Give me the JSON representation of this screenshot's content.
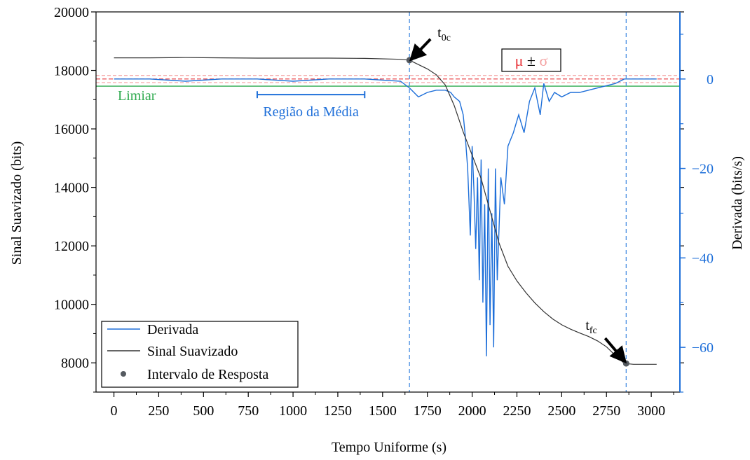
{
  "chart_data": {
    "type": "line",
    "xlabel": "Tempo Uniforme (s)",
    "ylabel": "Sinal Suavizado (bits)",
    "y2label": "Derivada (bits/s)",
    "xlim": [
      -100,
      3160
    ],
    "ylim": [
      7000,
      20000
    ],
    "y2lim": [
      -70,
      15
    ],
    "x_ticks": [
      0,
      250,
      500,
      750,
      1000,
      1250,
      1500,
      1750,
      2000,
      2250,
      2500,
      2750,
      3000
    ],
    "y_ticks": [
      8000,
      10000,
      12000,
      14000,
      16000,
      18000,
      20000
    ],
    "y2_ticks": [
      0,
      -20,
      -40,
      -60
    ],
    "x_tick_labels": [
      "0",
      "250",
      "500",
      "750",
      "1000",
      "1250",
      "1500",
      "1750",
      "2000",
      "2250",
      "2500",
      "2750",
      "3000"
    ],
    "y_tick_labels": [
      "8000",
      "10000",
      "12000",
      "14000",
      "16000",
      "18000",
      "20000"
    ],
    "y2_tick_labels": [
      "0",
      "−20",
      "−40",
      "−60"
    ],
    "grid": false,
    "legend_position": "bottom-left",
    "legend": {
      "derivada": "Derivada",
      "sinal": "Sinal Suavizado",
      "intervalo": "Intervalo de Resposta"
    },
    "colors": {
      "derivada": "#1e6fd9",
      "sinal": "#333333",
      "limiar": "#2faa4f",
      "mu": "#e8353a",
      "sigma": "#f4a0a0",
      "vlines": "#4a90e2",
      "points": "#555a60",
      "region": "#1e6fd9",
      "right_axis": "#1e6fd9"
    },
    "series": [
      {
        "name": "Sinal Suavizado",
        "axis": "left",
        "x": [
          0,
          200,
          400,
          600,
          800,
          1000,
          1200,
          1400,
          1600,
          1650,
          1700,
          1750,
          1800,
          1850,
          1900,
          1950,
          2000,
          2050,
          2100,
          2150,
          2200,
          2250,
          2300,
          2350,
          2400,
          2450,
          2500,
          2550,
          2600,
          2650,
          2700,
          2750,
          2800,
          2850,
          2900,
          2950,
          3000,
          3030
        ],
        "y": [
          18430,
          18430,
          18440,
          18430,
          18420,
          18420,
          18420,
          18410,
          18380,
          18350,
          18200,
          18050,
          17850,
          17500,
          16800,
          15900,
          15100,
          14300,
          13200,
          12100,
          11300,
          10800,
          10400,
          10050,
          9750,
          9500,
          9300,
          9150,
          9020,
          8900,
          8750,
          8550,
          8250,
          7980,
          7950,
          7950,
          7950,
          7950
        ]
      },
      {
        "name": "Derivada",
        "axis": "right",
        "x": [
          0,
          200,
          400,
          600,
          800,
          1000,
          1200,
          1400,
          1600,
          1650,
          1700,
          1750,
          1800,
          1850,
          1880,
          1900,
          1930,
          1950,
          1960,
          1975,
          1990,
          2000,
          2010,
          2020,
          2030,
          2040,
          2050,
          2060,
          2070,
          2080,
          2090,
          2100,
          2110,
          2120,
          2130,
          2140,
          2160,
          2180,
          2200,
          2230,
          2260,
          2290,
          2320,
          2350,
          2380,
          2400,
          2430,
          2460,
          2500,
          2550,
          2600,
          2650,
          2700,
          2750,
          2800,
          2850,
          2900,
          2950,
          3000,
          3030
        ],
        "y": [
          0,
          0,
          -0.5,
          0,
          0,
          -0.5,
          0,
          0,
          -0.5,
          -2,
          -4,
          -3,
          -2.5,
          -2.5,
          -3,
          -4,
          -5,
          -8,
          -12,
          -20,
          -35,
          -15,
          -25,
          -38,
          -22,
          -45,
          -18,
          -50,
          -28,
          -62,
          -20,
          -55,
          -30,
          -60,
          -20,
          -45,
          -22,
          -28,
          -15,
          -12,
          -8,
          -12,
          -5,
          -2,
          -8,
          -1,
          -5,
          -3,
          -4,
          -3,
          -3,
          -2.5,
          -2,
          -1.5,
          -1,
          0,
          0,
          0,
          0,
          0
        ]
      }
    ],
    "threshold": {
      "label": "Limiar",
      "y2": -1.6
    },
    "mu_line": {
      "y2": 0
    },
    "sigma_lines": {
      "y2": [
        0.8,
        -0.8
      ]
    },
    "region_label": "Região da Média",
    "region_range": [
      800,
      1400
    ],
    "region_marker_y2": -3.5,
    "vertical_lines_x": [
      1650,
      2860
    ],
    "response_points": [
      {
        "label_main": "t",
        "label_sub": "0c",
        "x": 1650,
        "y": 18350
      },
      {
        "label_main": "t",
        "label_sub": "fc",
        "x": 2860,
        "y": 7980
      }
    ],
    "annotation_mu_sigma": {
      "mu": "μ",
      "pm": "±",
      "sigma": "σ"
    }
  }
}
